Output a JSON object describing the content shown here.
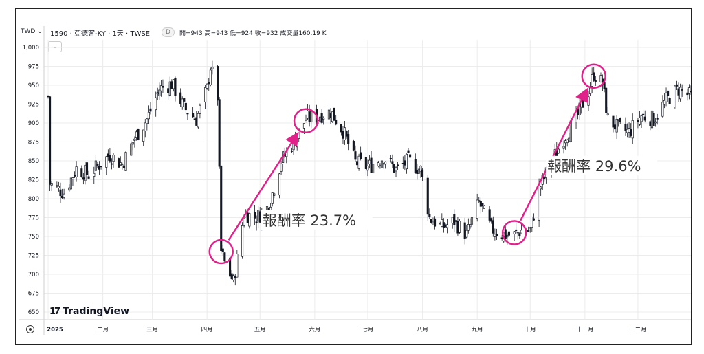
{
  "header": {
    "currency": "TWD",
    "currency_caret": "⌄",
    "symbol": "1590 · 亞德客-KY · 1天 · TWSE",
    "interval_badge": "D",
    "ohlc": "開=943 高=943 低=924 收=932 成交量160.19 K",
    "collapse_label": "⌄"
  },
  "branding": {
    "logo_mark": "17",
    "logo_text": "TradingView"
  },
  "colors": {
    "candle": "#131722",
    "annotation": "#e0218a",
    "grid": "#ececec"
  },
  "annotations": [
    {
      "label": "報酬率 23.7%",
      "from_date": "2025-04-09",
      "from_price": 730,
      "to_date": "2025-05-27",
      "to_price": 903
    },
    {
      "label": "報酬率 29.6%",
      "from_date": "2025-09-22",
      "from_price": 755,
      "to_date": "2025-11-06",
      "to_price": 962
    }
  ],
  "chart_data": {
    "type": "candlestick",
    "title": "",
    "xlabel": "",
    "ylabel": "",
    "ylim": [
      640,
      1010
    ],
    "y_ticks": [
      650,
      675,
      700,
      725,
      750,
      775,
      800,
      825,
      850,
      875,
      900,
      925,
      950,
      975,
      1000
    ],
    "y_tick_labels": [
      "650",
      "675",
      "700",
      "725",
      "750",
      "775",
      "800",
      "825",
      "850",
      "875",
      "900",
      "925",
      "950",
      "975",
      "1,000"
    ],
    "x_range": [
      "2025-01-01",
      "2025-12-31"
    ],
    "x_ticks": [
      "2025-01-01",
      "2025-02-01",
      "2025-03-01",
      "2025-04-01",
      "2025-05-01",
      "2025-06-01",
      "2025-07-01",
      "2025-08-01",
      "2025-09-01",
      "2025-10-01",
      "2025-11-01",
      "2025-12-01"
    ],
    "x_tick_labels": [
      "2025",
      "二月",
      "三月",
      "四月",
      "五月",
      "六月",
      "七月",
      "八月",
      "九月",
      "十月",
      "十一月",
      "十二月"
    ],
    "grid": true,
    "close_anchors": [
      [
        "2025-01-02",
        820
      ],
      [
        "2025-01-10",
        808
      ],
      [
        "2025-01-17",
        840
      ],
      [
        "2025-01-24",
        832
      ],
      [
        "2025-02-05",
        858
      ],
      [
        "2025-02-12",
        845
      ],
      [
        "2025-02-19",
        880
      ],
      [
        "2025-02-26",
        905
      ],
      [
        "2025-03-05",
        945
      ],
      [
        "2025-03-12",
        952
      ],
      [
        "2025-03-19",
        920
      ],
      [
        "2025-03-26",
        905
      ],
      [
        "2025-04-01",
        945
      ],
      [
        "2025-04-03",
        975
      ],
      [
        "2025-04-07",
        935
      ],
      [
        "2025-04-09",
        730
      ],
      [
        "2025-04-11",
        715
      ],
      [
        "2025-04-16",
        690
      ],
      [
        "2025-04-22",
        780
      ],
      [
        "2025-04-29",
        775
      ],
      [
        "2025-05-06",
        790
      ],
      [
        "2025-05-13",
        850
      ],
      [
        "2025-05-20",
        875
      ],
      [
        "2025-05-27",
        905
      ],
      [
        "2025-06-03",
        910
      ],
      [
        "2025-06-10",
        915
      ],
      [
        "2025-06-17",
        890
      ],
      [
        "2025-06-24",
        848
      ],
      [
        "2025-07-01",
        842
      ],
      [
        "2025-07-10",
        855
      ],
      [
        "2025-07-17",
        838
      ],
      [
        "2025-07-24",
        850
      ],
      [
        "2025-07-31",
        838
      ],
      [
        "2025-08-05",
        775
      ],
      [
        "2025-08-12",
        762
      ],
      [
        "2025-08-19",
        770
      ],
      [
        "2025-08-26",
        752
      ],
      [
        "2025-09-02",
        795
      ],
      [
        "2025-09-09",
        760
      ],
      [
        "2025-09-16",
        752
      ],
      [
        "2025-09-22",
        752
      ],
      [
        "2025-09-26",
        758
      ],
      [
        "2025-10-01",
        758
      ],
      [
        "2025-10-06",
        812
      ],
      [
        "2025-10-13",
        848
      ],
      [
        "2025-10-20",
        880
      ],
      [
        "2025-10-27",
        905
      ],
      [
        "2025-11-03",
        942
      ],
      [
        "2025-11-06",
        965
      ],
      [
        "2025-11-11",
        952
      ],
      [
        "2025-11-14",
        905
      ],
      [
        "2025-11-20",
        893
      ],
      [
        "2025-11-26",
        888
      ],
      [
        "2025-12-03",
        910
      ],
      [
        "2025-12-10",
        905
      ],
      [
        "2025-12-17",
        930
      ],
      [
        "2025-12-24",
        945
      ],
      [
        "2025-12-31",
        935
      ]
    ]
  }
}
